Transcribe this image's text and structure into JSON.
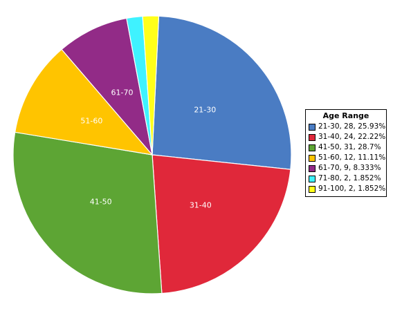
{
  "chart_data": {
    "type": "pie",
    "title": "",
    "legend_title": "Age Range",
    "legend_position": "right",
    "slices": [
      {
        "label": "21-30",
        "value": 28,
        "percent": "25.93%",
        "legend_text": "21-30, 28, 25.93%",
        "color": "#4A7CC3",
        "show_label": true
      },
      {
        "label": "31-40",
        "value": 24,
        "percent": "22.22%",
        "legend_text": "31-40, 24, 22.22%",
        "color": "#E0283A",
        "show_label": true
      },
      {
        "label": "41-50",
        "value": 31,
        "percent": "28.7%",
        "legend_text": "41-50, 31, 28.7%",
        "color": "#5DA534",
        "show_label": true
      },
      {
        "label": "51-60",
        "value": 12,
        "percent": "11.11%",
        "legend_text": "51-60, 12, 11.11%",
        "color": "#FFC400",
        "show_label": true
      },
      {
        "label": "61-70",
        "value": 9,
        "percent": "8.333%",
        "legend_text": "61-70, 9, 8.333%",
        "color": "#922B87",
        "show_label": true
      },
      {
        "label": "71-80",
        "value": 2,
        "percent": "1.852%",
        "legend_text": "71-80, 2, 1.852%",
        "color": "#3FF2FF",
        "show_label": false
      },
      {
        "label": "91-100",
        "value": 2,
        "percent": "1.852%",
        "legend_text": "91-100, 2, 1.852%",
        "color": "#FFFF1A",
        "show_label": false
      }
    ]
  }
}
